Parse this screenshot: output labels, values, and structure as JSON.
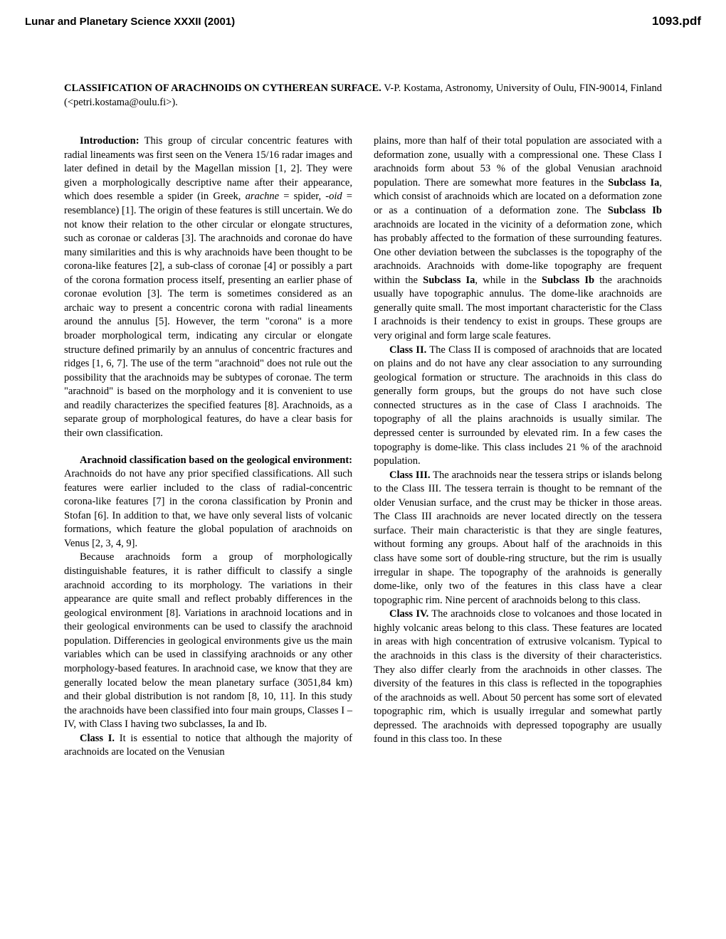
{
  "header": {
    "conference": "Lunar and Planetary Science XXXII (2001)",
    "docid": "1093.pdf"
  },
  "title": {
    "main": "CLASSIFICATION OF ARACHNOIDS ON CYTHEREAN SURFACE.",
    "author": "V-P. Kostama, Astronomy, University of Oulu, FIN-90014, Finland (<petri.kostama@oulu.fi>)."
  },
  "left": {
    "intro_head": "Introduction:",
    "intro_body1": " This group of circular concentric features with radial lineaments was first seen on the Venera 15/16 radar images and later defined in detail by the Magellan mission [1, 2]. They were given a morphologically descriptive name after their appearance, which does resemble a spider (in Greek, ",
    "intro_italic1": "arachne",
    "intro_body2": " = spider, -",
    "intro_italic2": "oid",
    "intro_body3": " = resemblance) [1]. The origin of these features is still uncertain. We do not know their relation to the other circular or elongate structures, such as coronae or calderas [3]. The arachnoids and coronae do have many similarities and this is why arachnoids have been thought to be corona-like features [2], a sub-class of coronae [4] or possibly a part of the corona formation process itself, presenting an earlier phase of coronae evolution [3]. The term is sometimes considered as an archaic way to present a concentric corona with radial lineaments around the annulus [5]. However, the term \"corona\" is a more broader morphological term, indicating any circular or elongate structure defined primarily by an annulus of concentric fractures and ridges [1, 6, 7]. The use of the term \"arachnoid\" does not rule out the possibility that the arachnoids may be subtypes of coronae. The term \"arachnoid\" is based on the morphology and it is convenient to use and readily characterizes the specified features [8]. Arachnoids, as a separate group of morphological features, do have a clear basis for their own classification.",
    "env_head": "Arachnoid classification based on the geological environment:",
    "env_body": " Arachnoids do not have any prior specified classifications. All such features were earlier included to the class of radial-concentric corona-like features [7] in the corona classification by Pronin and Stofan [6]. In addition to that, we have only several lists of volcanic formations, which feature the global population of arachnoids on Venus [2, 3, 4, 9].",
    "env_p2": "Because arachnoids form a group of morphologically distinguishable features, it is rather difficult to classify a single arachnoid according to its morphology. The variations in their appearance are quite small and reflect probably differences in the geological environment [8]. Variations in arachnoid locations and in their geological environments can be used to classify the arachnoid population. Differencies in  geological environments give us the main variables which can be used in classifying arachnoids or any other morphology-based features. In arachnoid case, we know that they are generally located below the mean planetary surface (3051,84 km) and their global distribution is not random [8, 10, 11]. In this study the arachnoids have been classified into four main groups, Classes I – IV, with Class I having two subclasses, Ia and Ib.",
    "c1_head": "Class I.",
    "c1_body": " It is essential to notice that although the majority of arachnoids are located on the Venusian"
  },
  "right": {
    "r1a": "plains, more than half of their total population are associated with a deformation zone, usually with a compressional one. These Class I arachnoids form about 53 % of the global Venusian arachnoid population. There are somewhat more features in the ",
    "r1b": "Subclass Ia",
    "r1c": ", which consist of arachnoids which are located on a deformation zone or as a continuation of a deformation zone. The ",
    "r1d": "Subclass Ib",
    "r1e": " arachnoids are located in the vicinity of a deformation zone, which has probably affected to the formation of these surrounding features. One other deviation between the subclasses is the topography of the arachnoids. Arachnoids with dome-like topography are frequent within the ",
    "r1f": "Subclass Ia",
    "r1g": ", while in the ",
    "r1h": "Subclass Ib",
    "r1i": " the arachnoids usually have topographic annulus. The dome-like arachnoids are generally quite small. The most important characteristic for the Class I arachnoids is their tendency to exist in groups. These groups are very original and form large scale features.",
    "c2_head": "Class II.",
    "c2_body": " The Class II is composed of arachnoids that are located on plains and do not have any clear association to any surrounding geological formation or structure. The arachnoids in this class do generally form groups, but the groups do not have such close connected structures as in the case of Class I arachnoids. The topography of all the plains arachnoids is usually similar. The depressed center is surrounded by elevated rim. In a few cases the topography is dome-like. This class includes 21 % of the arachnoid population.",
    "c3_head": "Class III.",
    "c3_body": " The arachnoids near the tessera strips or islands belong to the Class III. The tessera terrain is thought to be remnant of the older Venusian surface, and the crust may be thicker in those areas. The Class III arachnoids are never located directly on the tessera surface. Their main characteristic is that they are single features, without forming any groups. About half of the arachnoids in this class have some sort of double-ring structure, but the rim is usually irregular in shape. The topography of the arahnoids is generally dome-like, only two of the features in this class have a clear topographic rim. Nine percent of arachnoids belong to this class.",
    "c4_head": "Class IV.",
    "c4_body": " The arachnoids close to volcanoes and those located in highly volcanic areas belong to this class. These features are located in areas with high concentration of extrusive volcanism. Typical to the arachnoids in this class is the diversity of their characteristics. They also differ clearly from the arachnoids in other classes. The diversity of the features in this class is reflected in the topographies of the arachnoids as well. About 50 percent has some sort of elevated topographic rim, which is usually irregular and somewhat partly depressed. The arachnoids with depressed topography are usually found in this class too. In these"
  }
}
